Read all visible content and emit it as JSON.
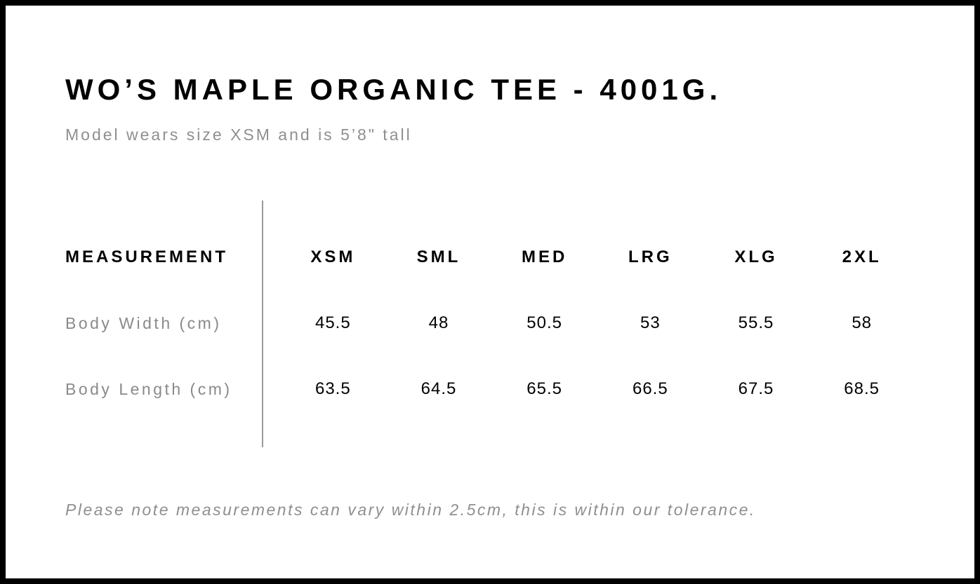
{
  "page": {
    "title": "WO’S MAPLE ORGANIC TEE - 4001G.",
    "subtitle": "Model wears size XSM and is 5’8\" tall",
    "note": "Please note measurements can vary within 2.5cm, this is within our tolerance."
  },
  "size_chart": {
    "type": "table",
    "label_header": "MEASUREMENT",
    "columns": [
      "XSM",
      "SML",
      "MED",
      "LRG",
      "XLG",
      "2XL"
    ],
    "rows": [
      {
        "label": "Body Width (cm)",
        "values": [
          "45.5",
          "48",
          "50.5",
          "53",
          "55.5",
          "58"
        ]
      },
      {
        "label": "Body Length (cm)",
        "values": [
          "63.5",
          "64.5",
          "65.5",
          "66.5",
          "67.5",
          "68.5"
        ]
      }
    ]
  },
  "colors": {
    "text": "#000000",
    "muted_text": "#8f8f8f",
    "divider": "#9a9a9a",
    "page_border": "#000000"
  }
}
